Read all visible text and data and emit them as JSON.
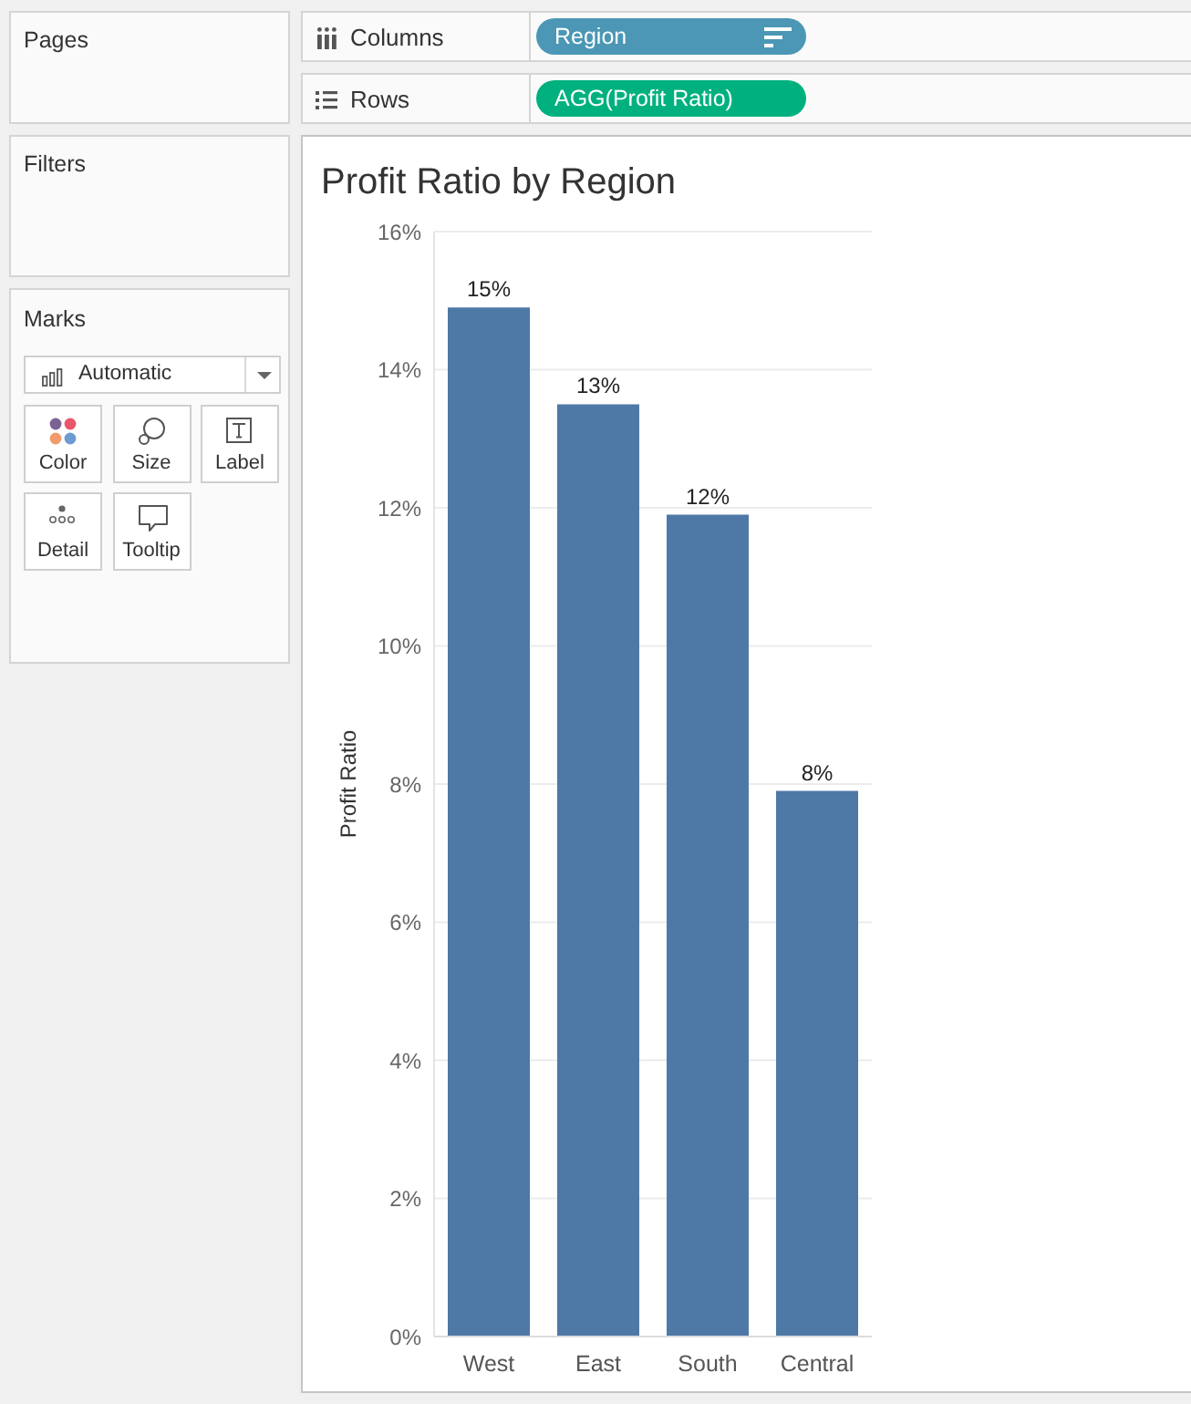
{
  "chart_data": [
    {
      "type": "other",
      "title": "Pages"
    },
    {
      "type": "other",
      "title": "Filters"
    },
    {
      "type": "other",
      "title": "Marks",
      "annotations": [
        "Automatic",
        "Color",
        "Size",
        "Label",
        "Detail",
        "Tooltip"
      ]
    },
    {
      "type": "other",
      "title": "Columns",
      "annotations": [
        "Region"
      ]
    },
    {
      "type": "other",
      "title": "Rows",
      "annotations": [
        "AGG(Profit Ratio)"
      ]
    },
    {
      "type": "bar",
      "title": "Profit Ratio by Region",
      "ylabel": "Profit Ratio",
      "categories": [
        "West",
        "East",
        "South",
        "Central"
      ],
      "values": [
        14.9,
        13.5,
        11.9,
        7.9
      ],
      "color": "#4e79a7",
      "ylim": [
        0,
        16
      ],
      "yticks": [
        {
          "value": 0,
          "label": "0%"
        },
        {
          "value": 2,
          "label": "2%"
        },
        {
          "value": 4,
          "label": "4%"
        },
        {
          "value": 6,
          "label": "6%"
        },
        {
          "value": 8,
          "label": "8%"
        },
        {
          "value": 10,
          "label": "10%"
        },
        {
          "value": 12,
          "label": "12%"
        },
        {
          "value": 14,
          "label": "14%"
        },
        {
          "value": 16,
          "label": "16%"
        }
      ],
      "grid": "y",
      "value_labels": [
        "15%",
        "13%",
        "12%",
        "8%"
      ]
    }
  ]
}
